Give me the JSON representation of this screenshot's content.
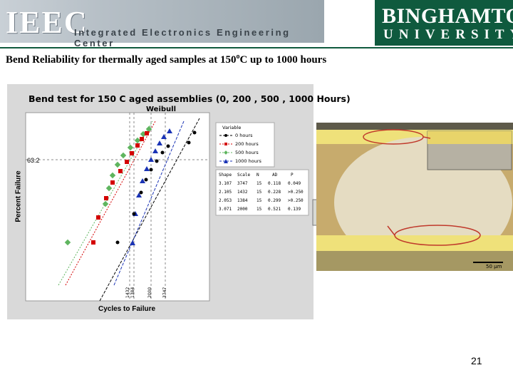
{
  "header": {
    "left_logo": "IEEC",
    "left_subtitle": "Integrated Electronics Engineering Center",
    "right_name": "BINGHAMTON",
    "right_univ": "UNIVERSITY",
    "brand_green": "#0f5a3e"
  },
  "slide": {
    "title_pre": "Bend Reliability for thermally aged samples at 150",
    "title_sup": "o",
    "title_post": "C up to 1000 hours",
    "page_number": "21"
  },
  "chart": {
    "title": "Bend test for 150 C aged assemblies (0, 200 , 500 , 1000 Hours)",
    "subtitle": "Weibull",
    "ylabel": "Percent Failure",
    "xlabel": "Cycles to Failure",
    "marker_632": "63.2",
    "legend_title": "Variable",
    "legend_items": [
      "0 hours",
      "200 hours",
      "500 hours",
      "1000 hours"
    ],
    "table_header": [
      "Shape",
      "Scale",
      "N",
      "AD",
      "P"
    ],
    "table_rows": [
      [
        "3.107",
        "3747",
        "15",
        "0.118",
        "0.049"
      ],
      [
        "2.105",
        "1432",
        "15",
        "0.228",
        ">0.250"
      ],
      [
        "2.053",
        "1384",
        "15",
        "0.299",
        ">0.250"
      ],
      [
        "3.071",
        "2000",
        "15",
        "0.521",
        "0.139"
      ]
    ],
    "x_ticks": [
      "1432",
      "1384",
      "2000",
      "3747"
    ],
    "micrograph_scale": "50 µm"
  },
  "chart_data": {
    "type": "scatter",
    "title": "Bend test for 150 C aged assemblies (0, 200 , 500 , 1000 Hours)",
    "subtitle": "Weibull",
    "xlabel": "Cycles to Failure",
    "ylabel": "Percent Failure",
    "series": [
      {
        "name": "0 hours",
        "color": "#000000",
        "marker": "circle"
      },
      {
        "name": "200 hours",
        "color": "#d40000",
        "marker": "square"
      },
      {
        "name": "500 hours",
        "color": "#5fb55f",
        "marker": "diamond"
      },
      {
        "name": "1000 hours",
        "color": "#1a33b5",
        "marker": "triangle"
      }
    ],
    "reference_line": {
      "label": "63.2"
    },
    "x_reference_ticks": [
      "1432",
      "1384",
      "2000",
      "3747"
    ]
  }
}
